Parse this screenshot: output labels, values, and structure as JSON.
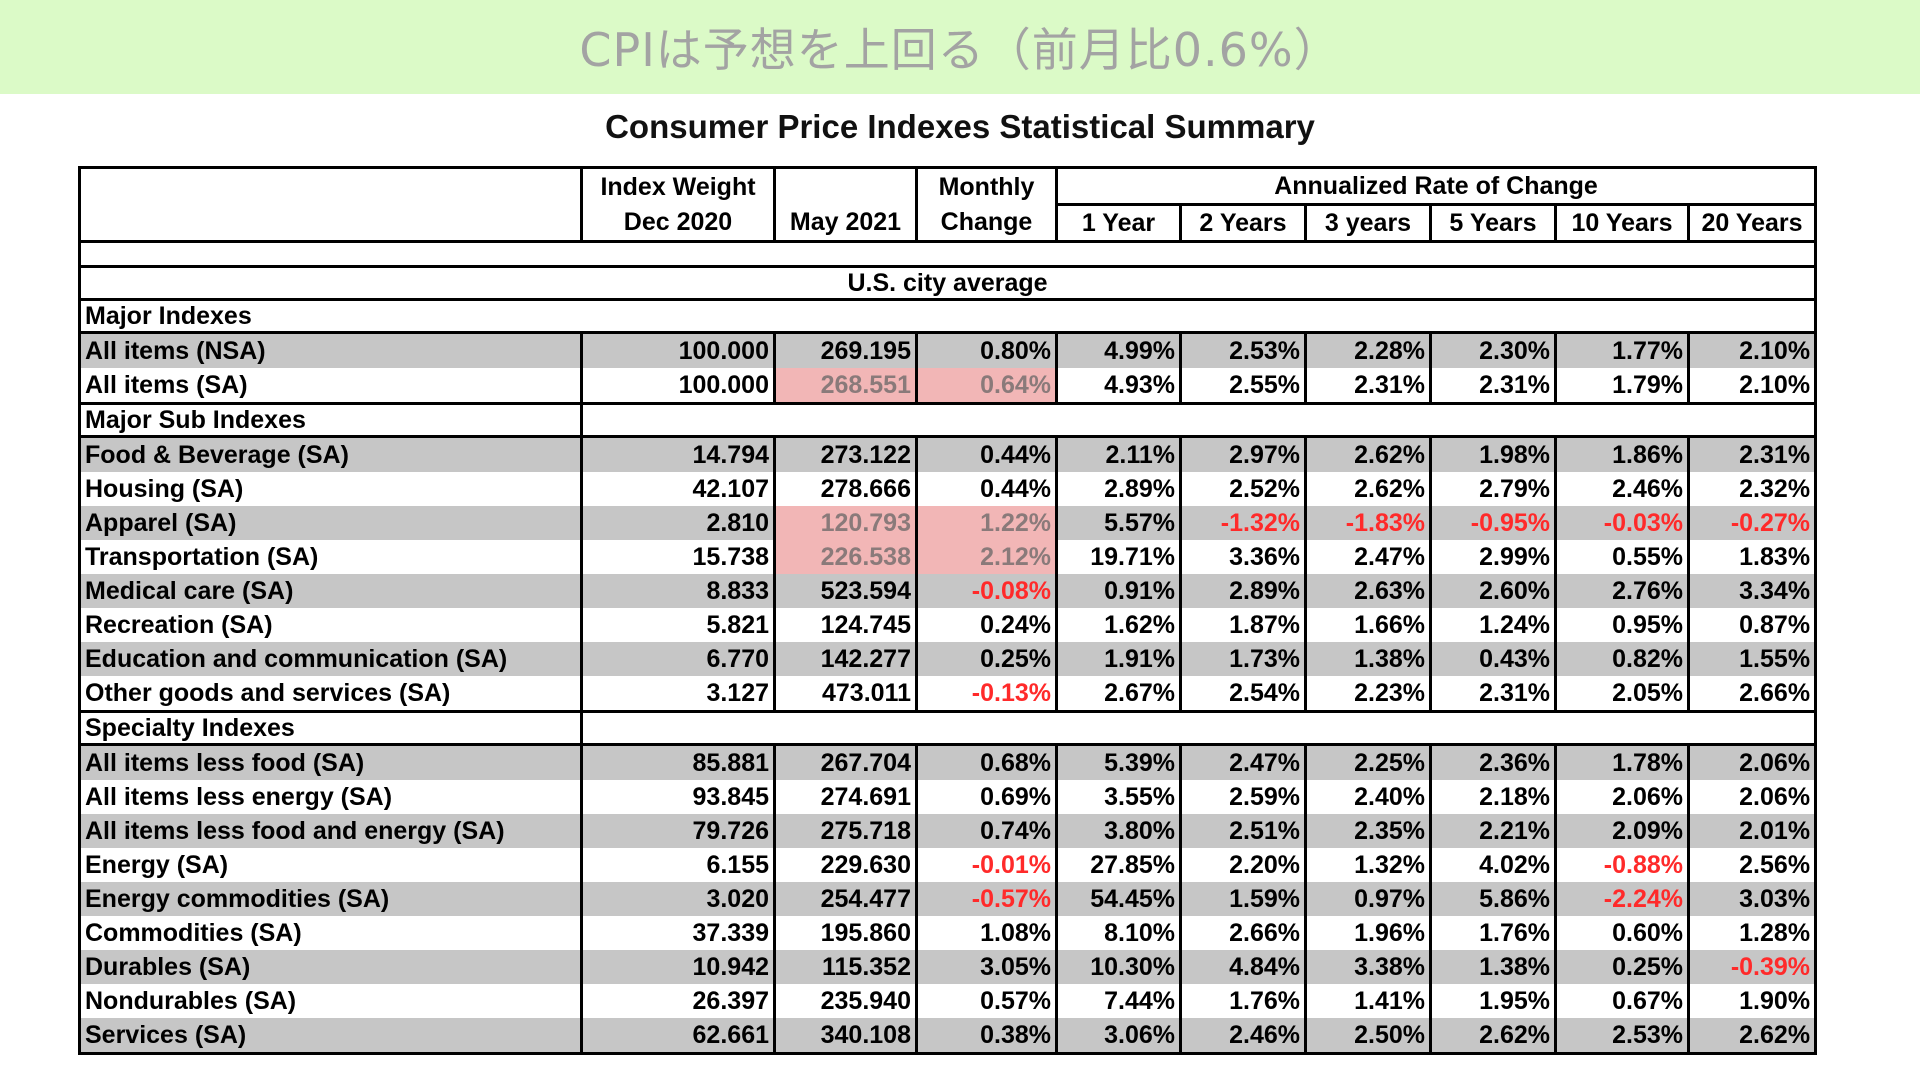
{
  "banner": {
    "title": "CPIは予想を上回る（前月比0.6%）",
    "bg_color": "#dbfac7"
  },
  "document_title": "Consumer Price Indexes Statistical Summary",
  "header": {
    "weight_l1": "Index Weight",
    "weight_l2": "Dec 2020",
    "may": "May 2021",
    "monthly_l1": "Monthly",
    "monthly_l2": "Change",
    "annualized": "Annualized Rate of Change",
    "periods": [
      "1 Year",
      "2 Years",
      "3 years",
      "5 Years",
      "10 Years",
      "20 Years"
    ]
  },
  "city_average": "U.S. city average",
  "sections": [
    {
      "title": "Major Indexes",
      "rows": [
        {
          "name": "All items (NSA)",
          "cells": [
            "100.000",
            "269.195",
            "0.80%",
            "4.99%",
            "2.53%",
            "2.28%",
            "2.30%",
            "1.77%",
            "2.10%"
          ]
        },
        {
          "name": "All items (SA)",
          "cells": [
            "100.000",
            "268.551",
            "0.64%",
            "4.93%",
            "2.55%",
            "2.31%",
            "2.31%",
            "1.79%",
            "2.10%"
          ]
        }
      ]
    },
    {
      "title": "Major Sub Indexes",
      "rows": [
        {
          "name": "Food & Beverage (SA)",
          "cells": [
            "14.794",
            "273.122",
            "0.44%",
            "2.11%",
            "2.97%",
            "2.62%",
            "1.98%",
            "1.86%",
            "2.31%"
          ]
        },
        {
          "name": "Housing (SA)",
          "cells": [
            "42.107",
            "278.666",
            "0.44%",
            "2.89%",
            "2.52%",
            "2.62%",
            "2.79%",
            "2.46%",
            "2.32%"
          ]
        },
        {
          "name": "Apparel (SA)",
          "cells": [
            "2.810",
            "120.793",
            "1.22%",
            "5.57%",
            "-1.32%",
            "-1.83%",
            "-0.95%",
            "-0.03%",
            "-0.27%"
          ]
        },
        {
          "name": "Transportation (SA)",
          "cells": [
            "15.738",
            "226.538",
            "2.12%",
            "19.71%",
            "3.36%",
            "2.47%",
            "2.99%",
            "0.55%",
            "1.83%"
          ]
        },
        {
          "name": "Medical care (SA)",
          "cells": [
            "8.833",
            "523.594",
            "-0.08%",
            "0.91%",
            "2.89%",
            "2.63%",
            "2.60%",
            "2.76%",
            "3.34%"
          ]
        },
        {
          "name": "Recreation (SA)",
          "cells": [
            "5.821",
            "124.745",
            "0.24%",
            "1.62%",
            "1.87%",
            "1.66%",
            "1.24%",
            "0.95%",
            "0.87%"
          ]
        },
        {
          "name": "Education and communication (SA)",
          "cells": [
            "6.770",
            "142.277",
            "0.25%",
            "1.91%",
            "1.73%",
            "1.38%",
            "0.43%",
            "0.82%",
            "1.55%"
          ]
        },
        {
          "name": "Other goods and services (SA)",
          "cells": [
            "3.127",
            "473.011",
            "-0.13%",
            "2.67%",
            "2.54%",
            "2.23%",
            "2.31%",
            "2.05%",
            "2.66%"
          ]
        }
      ]
    },
    {
      "title": "Specialty Indexes",
      "rows": [
        {
          "name": "All items less food (SA)",
          "cells": [
            "85.881",
            "267.704",
            "0.68%",
            "5.39%",
            "2.47%",
            "2.25%",
            "2.36%",
            "1.78%",
            "2.06%"
          ]
        },
        {
          "name": "All items less energy (SA)",
          "cells": [
            "93.845",
            "274.691",
            "0.69%",
            "3.55%",
            "2.59%",
            "2.40%",
            "2.18%",
            "2.06%",
            "2.06%"
          ]
        },
        {
          "name": "All items less food and energy (SA)",
          "cells": [
            "79.726",
            "275.718",
            "0.74%",
            "3.80%",
            "2.51%",
            "2.35%",
            "2.21%",
            "2.09%",
            "2.01%"
          ]
        },
        {
          "name": "Energy (SA)",
          "cells": [
            "6.155",
            "229.630",
            "-0.01%",
            "27.85%",
            "2.20%",
            "1.32%",
            "4.02%",
            "-0.88%",
            "2.56%"
          ]
        },
        {
          "name": "Energy commodities (SA)",
          "cells": [
            "3.020",
            "254.477",
            "-0.57%",
            "54.45%",
            "1.59%",
            "0.97%",
            "5.86%",
            "-2.24%",
            "3.03%"
          ]
        },
        {
          "name": "Commodities (SA)",
          "cells": [
            "37.339",
            "195.860",
            "1.08%",
            "8.10%",
            "2.66%",
            "1.96%",
            "1.76%",
            "0.60%",
            "1.28%"
          ]
        },
        {
          "name": "Durables (SA)",
          "cells": [
            "10.942",
            "115.352",
            "3.05%",
            "10.30%",
            "4.84%",
            "3.38%",
            "1.38%",
            "0.25%",
            "-0.39%"
          ]
        },
        {
          "name": "Nondurables (SA)",
          "cells": [
            "26.397",
            "235.940",
            "0.57%",
            "7.44%",
            "1.76%",
            "1.41%",
            "1.95%",
            "0.67%",
            "1.90%"
          ]
        },
        {
          "name": "Services (SA)",
          "cells": [
            "62.661",
            "340.108",
            "0.38%",
            "3.06%",
            "2.46%",
            "2.50%",
            "2.62%",
            "2.53%",
            "2.62%"
          ]
        }
      ]
    }
  ],
  "highlighted_rows": [
    "All items (SA)",
    "Apparel (SA)",
    "Transportation (SA)"
  ],
  "colors": {
    "negative": "#ff2a2a",
    "highlight": "#f2b6b6",
    "row_shade": "#c6c6c6"
  }
}
